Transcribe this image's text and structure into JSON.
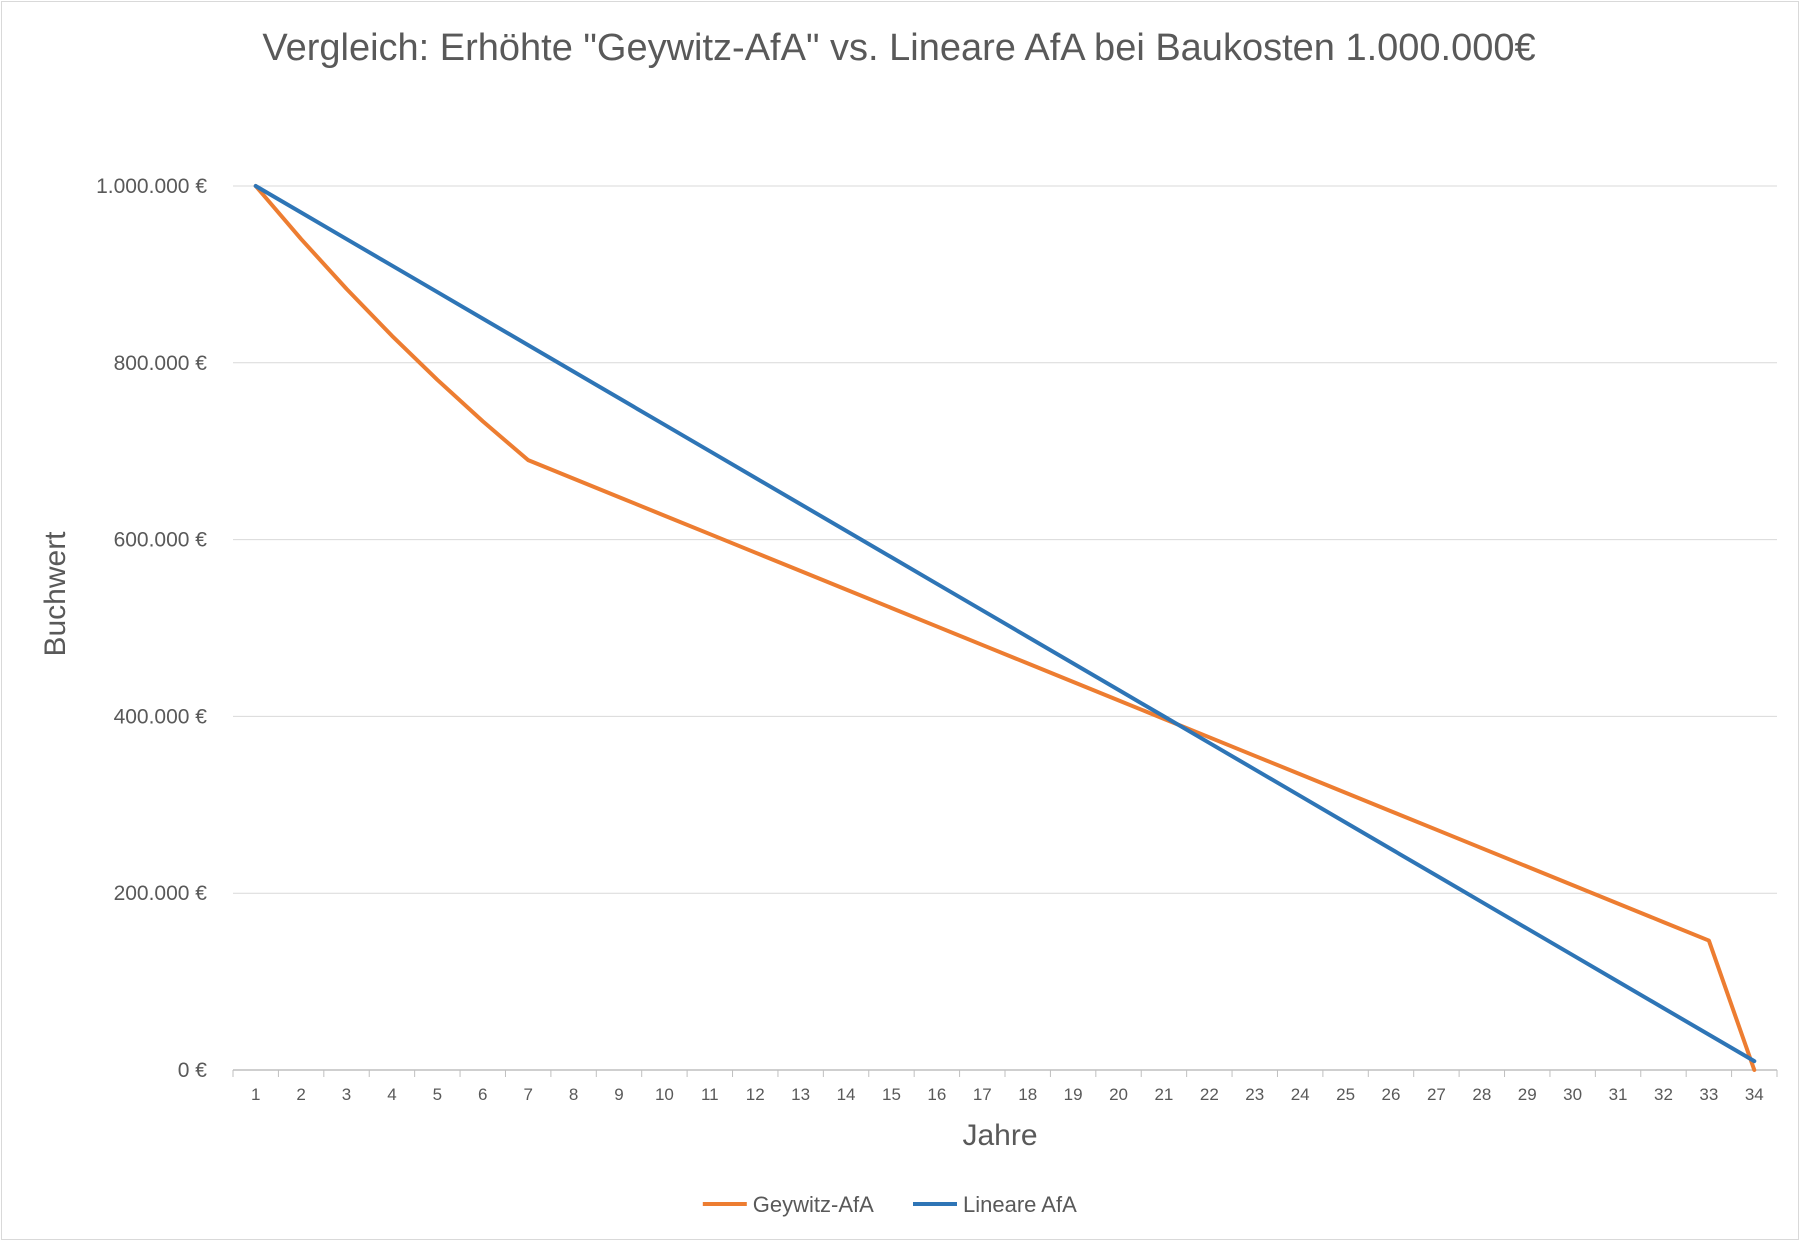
{
  "chart_data": {
    "type": "line",
    "title": "Vergleich: Erhöhte \"Geywitz-AfA\" vs. Lineare AfA bei Baukosten 1.000.000€",
    "xlabel": "Jahre",
    "ylabel": "Buchwert",
    "ylim": [
      0,
      1000000
    ],
    "y_ticks": [
      {
        "value": 0,
        "label": "0 €"
      },
      {
        "value": 200000,
        "label": "200.000 €"
      },
      {
        "value": 400000,
        "label": "400.000 €"
      },
      {
        "value": 600000,
        "label": "600.000 €"
      },
      {
        "value": 800000,
        "label": "800.000 €"
      },
      {
        "value": 1000000,
        "label": "1.000.000 €"
      }
    ],
    "categories": [
      "1",
      "2",
      "3",
      "4",
      "5",
      "6",
      "7",
      "8",
      "9",
      "10",
      "11",
      "12",
      "13",
      "14",
      "15",
      "16",
      "17",
      "18",
      "19",
      "20",
      "21",
      "22",
      "23",
      "24",
      "25",
      "26",
      "27",
      "28",
      "29",
      "30",
      "31",
      "32",
      "33",
      "34"
    ],
    "series": [
      {
        "name": "Geywitz-AfA",
        "color": "#ED7D31",
        "values": [
          1000000,
          940000,
          883600,
          830584,
          780749,
          733904,
          689870,
          668968,
          648066,
          627164,
          606262,
          585360,
          564458,
          543556,
          522654,
          501752,
          480850,
          459948,
          439046,
          418144,
          397242,
          376340,
          355438,
          334536,
          313634,
          292732,
          271830,
          250928,
          230026,
          209124,
          188222,
          167320,
          146418,
          0
        ]
      },
      {
        "name": "Lineare AfA",
        "color": "#2E75B6",
        "values": [
          1000000,
          970000,
          940000,
          910000,
          880000,
          850000,
          820000,
          790000,
          760000,
          730000,
          700000,
          670000,
          640000,
          610000,
          580000,
          550000,
          520000,
          490000,
          460000,
          430000,
          400000,
          370000,
          340000,
          310000,
          280000,
          250000,
          220000,
          190000,
          160000,
          130000,
          100000,
          70000,
          40000,
          10000
        ]
      }
    ],
    "grid": "horizontal",
    "legend_position": "bottom"
  }
}
